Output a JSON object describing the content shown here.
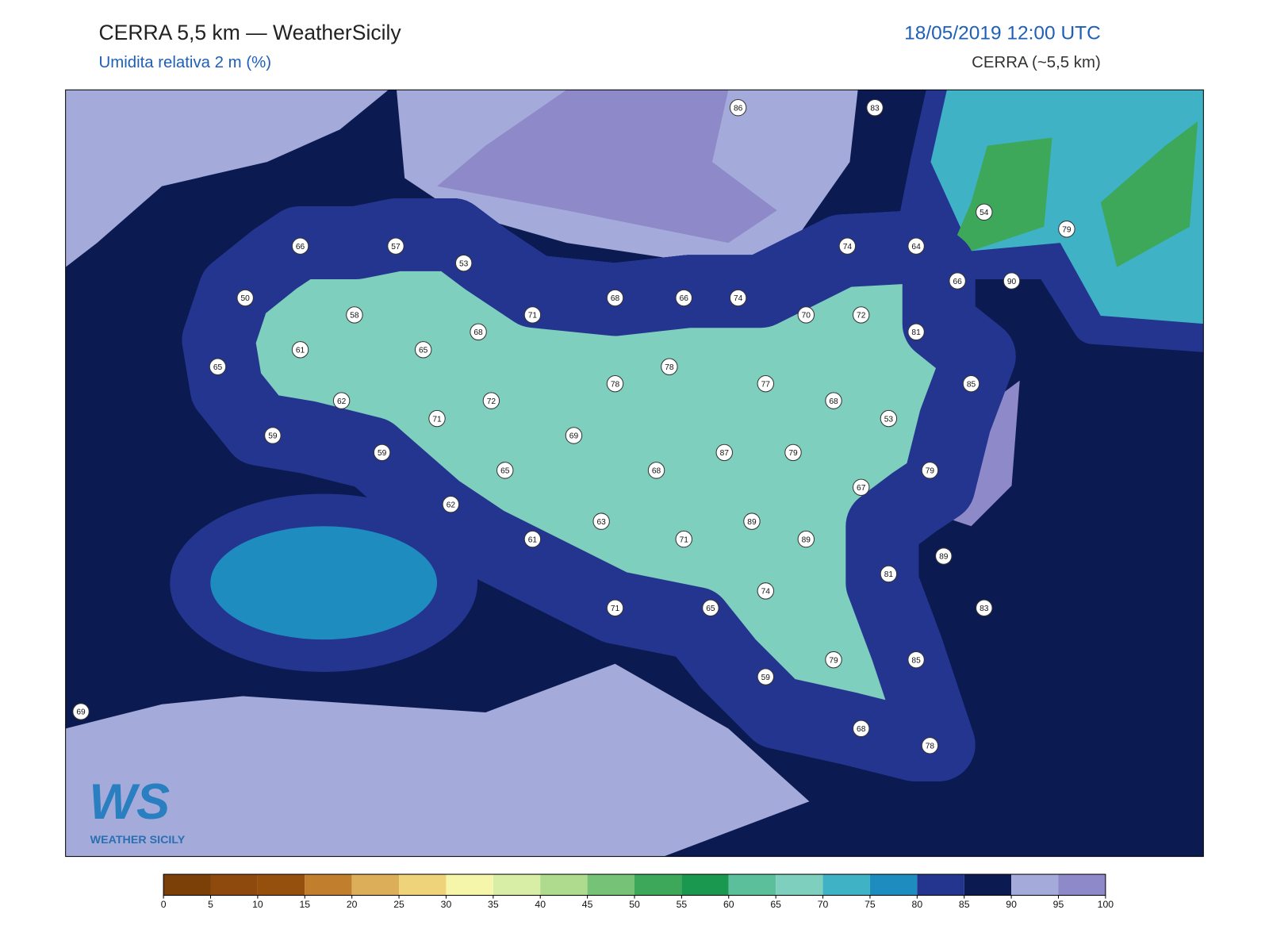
{
  "header": {
    "title": "CERRA 5,5 km — WeatherSicily",
    "subtitle": "Umidita relativa 2 m (%)",
    "datetime": "18/05/2019 12:00 UTC",
    "model": "CERRA (~5,5 km)"
  },
  "stations": [
    86,
    83,
    54,
    79,
    66,
    57,
    53,
    74,
    64,
    66,
    90,
    50,
    68,
    66,
    74,
    58,
    71,
    70,
    72,
    68,
    81,
    61,
    65,
    78,
    65,
    78,
    77,
    85,
    62,
    72,
    68,
    71,
    53,
    59,
    69,
    87,
    79,
    59,
    65,
    68,
    79,
    67,
    62,
    63,
    89,
    61,
    71,
    89,
    89,
    81,
    74,
    71,
    65,
    83,
    79,
    85,
    59,
    69,
    68,
    78
  ],
  "colorbar": {
    "ticks": [
      0,
      5,
      10,
      15,
      20,
      25,
      30,
      35,
      40,
      45,
      50,
      55,
      60,
      65,
      70,
      75,
      80,
      85,
      90,
      95,
      100
    ],
    "colors": [
      "#7a4008",
      "#8e4a0c",
      "#96500e",
      "#c17f2e",
      "#ddae5a",
      "#efd37a",
      "#f6f6aa",
      "#d8eda6",
      "#aedb8e",
      "#76c378",
      "#3da85a",
      "#1a9850",
      "#5cbf9c",
      "#7fcfbe",
      "#3fb2c6",
      "#1f8cc0",
      "#243590",
      "#0c1a52",
      "#a4abdb",
      "#8e89c8"
    ]
  },
  "logo": {
    "mark": "WS",
    "name": "WEATHER SICILY"
  }
}
